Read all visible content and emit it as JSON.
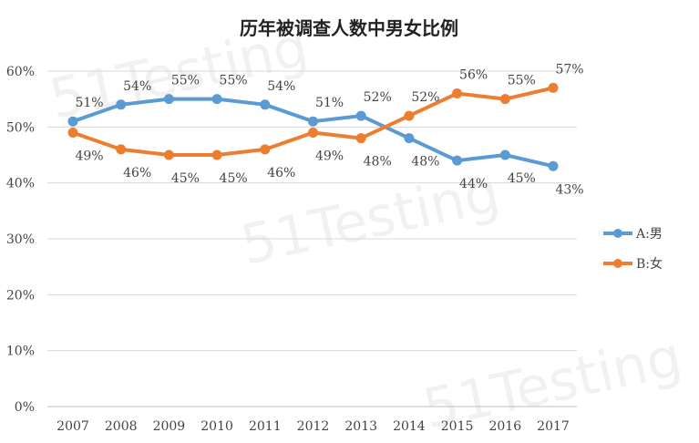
{
  "chart_data": {
    "type": "line",
    "title": "历年被调查人数中男女比例",
    "categories": [
      "2007",
      "2008",
      "2009",
      "2010",
      "2011",
      "2012",
      "2013",
      "2014",
      "2015",
      "2016",
      "2017"
    ],
    "series": [
      {
        "name": "A:男",
        "color": "#5B9BD5",
        "values": [
          51,
          54,
          55,
          55,
          54,
          51,
          52,
          48,
          44,
          45,
          43
        ]
      },
      {
        "name": "B:女",
        "color": "#ED7D31",
        "values": [
          49,
          46,
          45,
          45,
          46,
          49,
          48,
          52,
          56,
          55,
          57
        ]
      }
    ],
    "yticks": [
      "0%",
      "10%",
      "20%",
      "30%",
      "40%",
      "50%",
      "60%"
    ],
    "ylim": [
      0,
      60
    ],
    "xlabel": "",
    "ylabel": "",
    "grid": true,
    "legend": "right",
    "watermark": "51Testing"
  }
}
